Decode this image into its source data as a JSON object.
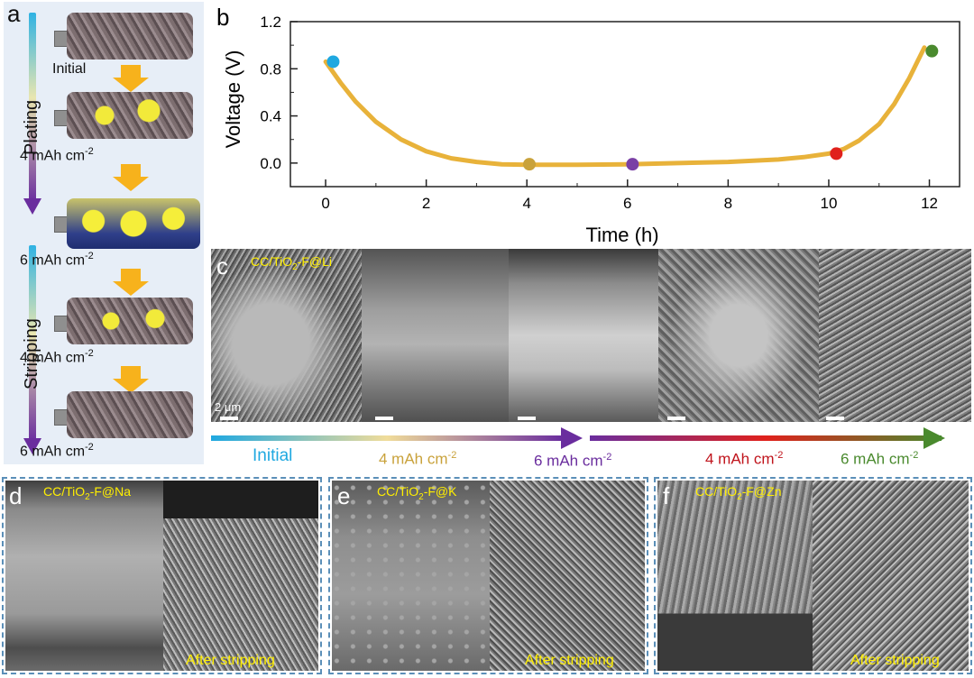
{
  "panel_a": {
    "letter": "a",
    "plating_label": "Plating",
    "stripping_label": "Stripping",
    "states": [
      "Initial",
      "4 mAh cm",
      "6 mAh cm",
      "4 mAh cm",
      "6 mAh cm"
    ],
    "superscript": "-2"
  },
  "panel_b": {
    "letter": "b"
  },
  "chart_data": {
    "type": "line",
    "xlabel": "Time (h)",
    "ylabel": "Voltage (V)",
    "xlim": [
      -0.7,
      12.6
    ],
    "ylim": [
      -0.2,
      1.2
    ],
    "xticks": [
      "0",
      "2",
      "4",
      "6",
      "8",
      "10",
      "12"
    ],
    "yticks": [
      "0.0",
      "0.4",
      "0.8",
      "1.2"
    ],
    "line_color": "#e8b23a",
    "series": [
      {
        "x": [
          0,
          0.3,
          0.6,
          1.0,
          1.5,
          2.0,
          2.5,
          3.0,
          3.5,
          4.0,
          5.0,
          6.0,
          7.0,
          8.0,
          9.0,
          9.5,
          10.0,
          10.3,
          10.6,
          11.0,
          11.3,
          11.6,
          11.9
        ],
        "y": [
          0.86,
          0.68,
          0.52,
          0.35,
          0.2,
          0.1,
          0.04,
          0.01,
          -0.01,
          -0.015,
          -0.015,
          -0.01,
          0.0,
          0.01,
          0.03,
          0.05,
          0.08,
          0.12,
          0.19,
          0.33,
          0.5,
          0.72,
          0.98
        ]
      }
    ],
    "markers": [
      {
        "x": 0.15,
        "y": 0.86,
        "color": "#1fa8e0"
      },
      {
        "x": 4.05,
        "y": -0.01,
        "color": "#c9a23b"
      },
      {
        "x": 6.1,
        "y": -0.01,
        "color": "#7a3fa5"
      },
      {
        "x": 10.15,
        "y": 0.08,
        "color": "#e0211c"
      },
      {
        "x": 12.05,
        "y": 0.95,
        "color": "#4a8a2e"
      }
    ],
    "grid": false
  },
  "panel_c": {
    "letter": "c",
    "title": "CC/TiO",
    "title_sub": "2",
    "title_rest": "-F@Li",
    "scale": "2 μm"
  },
  "progress": {
    "labels": [
      {
        "text": "Initial",
        "color": "#1fa8e0"
      },
      {
        "text": "4 mAh cm",
        "color": "#c9a23b"
      },
      {
        "text": "6 mAh cm",
        "color": "#6a2d9e"
      },
      {
        "text": "4 mAh cm",
        "color": "#c0141c"
      },
      {
        "text": "6 mAh cm",
        "color": "#4a8a2e"
      }
    ],
    "superscript": "-2"
  },
  "panel_d": {
    "letter": "d",
    "title": "CC/TiO",
    "title_sub": "2",
    "title_rest": "-F@Na",
    "after": "After stripping"
  },
  "panel_e": {
    "letter": "e",
    "title": "CC/TiO",
    "title_sub": "2",
    "title_rest": "-F@K",
    "after": "After stripping"
  },
  "panel_f": {
    "letter": "f",
    "title": "CC/TiO",
    "title_sub": "2",
    "title_rest": "-F@Zn",
    "after": "After stripping"
  }
}
